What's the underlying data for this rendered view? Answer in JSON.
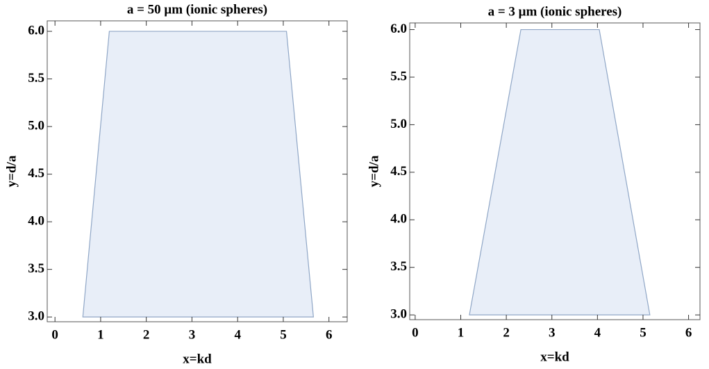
{
  "chart_data": [
    {
      "type": "region",
      "title": "a = 50 μm (ionic spheres)",
      "x_label": "x=kd",
      "y_label": "y=d/a",
      "x": [
        0.61,
        1.19,
        5.07,
        5.66
      ],
      "values": [
        3.0,
        6.0,
        6.0,
        3.0
      ],
      "color": "#e8eef8",
      "edge_color": "#8fa6c6",
      "xlim": [
        -0.17,
        6.4
      ],
      "ylim": [
        2.95,
        6.11
      ],
      "xticks": [
        0,
        1,
        2,
        3,
        4,
        5,
        6
      ],
      "yticks": [
        {
          "value": 3.0,
          "label": "3.0"
        },
        {
          "value": 3.5,
          "label": "3.5"
        },
        {
          "value": 4.0,
          "label": "4.0"
        },
        {
          "value": 4.5,
          "label": "4.5"
        },
        {
          "value": 5.0,
          "label": "5.0"
        },
        {
          "value": 5.5,
          "label": "5.5"
        },
        {
          "value": 6.0,
          "label": "6.0"
        }
      ],
      "grid": false
    },
    {
      "type": "region",
      "title": "a = 3 μm (ionic spheres)",
      "x_label": "x=kd",
      "y_label": "y=d/a",
      "x": [
        1.19,
        2.32,
        4.04,
        5.15
      ],
      "values": [
        3.0,
        6.0,
        6.0,
        3.0
      ],
      "color": "#e8eef8",
      "edge_color": "#8fa6c6",
      "xlim": [
        -0.12,
        6.25
      ],
      "ylim": [
        2.95,
        6.07
      ],
      "xticks": [
        0,
        1,
        2,
        3,
        4,
        5,
        6
      ],
      "yticks": [
        {
          "value": 3.0,
          "label": "3.0"
        },
        {
          "value": 3.5,
          "label": "3.5"
        },
        {
          "value": 4.0,
          "label": "4.0"
        },
        {
          "value": 4.5,
          "label": "4.5"
        },
        {
          "value": 5.0,
          "label": "5.0"
        },
        {
          "value": 5.5,
          "label": "5.5"
        },
        {
          "value": 6.0,
          "label": "6.0"
        }
      ],
      "grid": false
    }
  ]
}
